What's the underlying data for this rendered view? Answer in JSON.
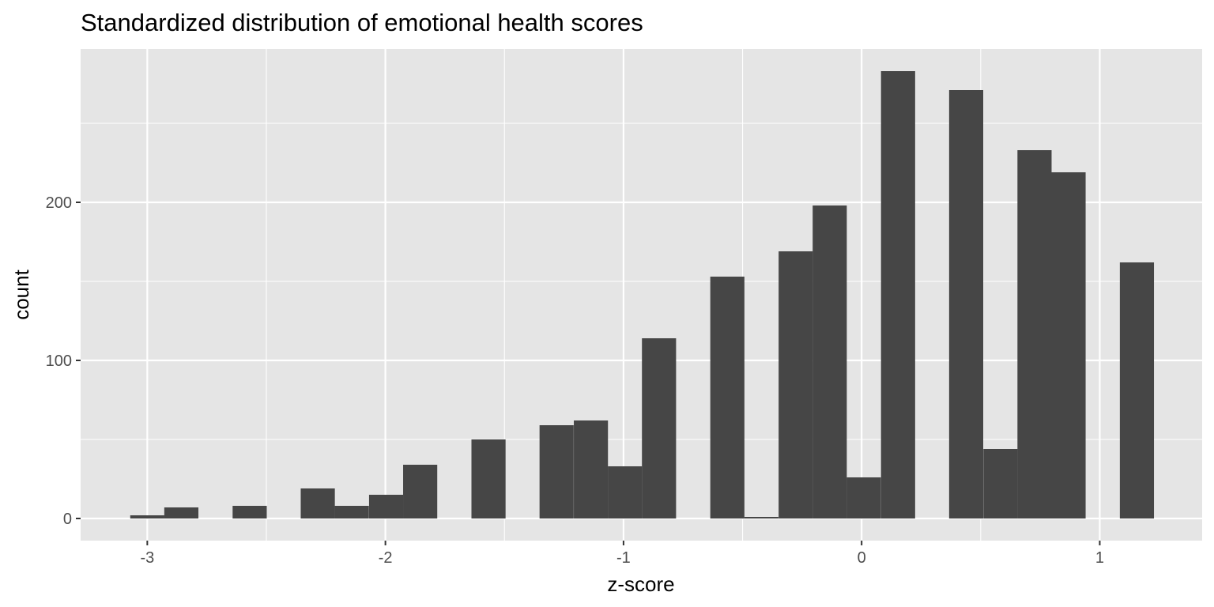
{
  "chart_data": {
    "type": "bar",
    "title": "Standardized distribution of emotional health scores",
    "xlabel": "z-score",
    "ylabel": "count",
    "xlim": [
      -3.28,
      1.43
    ],
    "ylim": [
      -14,
      297
    ],
    "x_ticks": [
      -3,
      -2,
      -1,
      0,
      1
    ],
    "x_tick_labels": [
      "-3",
      "-2",
      "-1",
      "0",
      "1"
    ],
    "y_ticks": [
      0,
      100,
      200
    ],
    "y_tick_labels": [
      "0",
      "100",
      "200"
    ],
    "grid": true,
    "bin_width": 0.1433,
    "bars": [
      {
        "x": -3.0,
        "count": 2
      },
      {
        "x": -2.857,
        "count": 7
      },
      {
        "x": -2.57,
        "count": 8
      },
      {
        "x": -2.284,
        "count": 19
      },
      {
        "x": -2.141,
        "count": 8
      },
      {
        "x": -1.997,
        "count": 15
      },
      {
        "x": -1.854,
        "count": 34
      },
      {
        "x": -1.567,
        "count": 50
      },
      {
        "x": -1.281,
        "count": 59
      },
      {
        "x": -1.137,
        "count": 62
      },
      {
        "x": -0.994,
        "count": 33
      },
      {
        "x": -0.851,
        "count": 114
      },
      {
        "x": -0.564,
        "count": 153
      },
      {
        "x": -0.421,
        "count": 1
      },
      {
        "x": -0.277,
        "count": 169
      },
      {
        "x": -0.134,
        "count": 198
      },
      {
        "x": 0.009,
        "count": 26
      },
      {
        "x": 0.153,
        "count": 283
      },
      {
        "x": 0.439,
        "count": 271
      },
      {
        "x": 0.583,
        "count": 44
      },
      {
        "x": 0.726,
        "count": 233
      },
      {
        "x": 0.869,
        "count": 219
      },
      {
        "x": 1.156,
        "count": 162
      }
    ],
    "colors": {
      "bar": "#464646",
      "panel": "#e5e5e5",
      "grid": "#ffffff",
      "tick": "#333333"
    }
  }
}
